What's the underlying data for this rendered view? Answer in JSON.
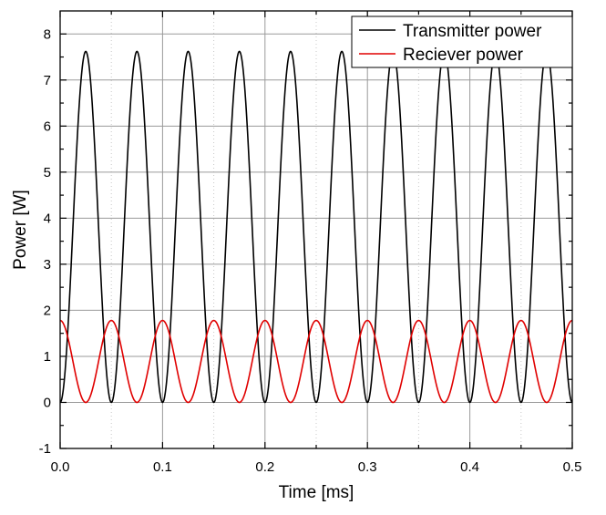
{
  "chart_data": {
    "type": "line",
    "title": "",
    "xlabel": "Time [ms]",
    "ylabel": "Power [W]",
    "xlim": [
      0.0,
      0.5
    ],
    "ylim": [
      -1,
      8.5
    ],
    "x_ticks": [
      "0.0",
      "0.1",
      "0.2",
      "0.3",
      "0.4",
      "0.5"
    ],
    "y_ticks": [
      "-1",
      "0",
      "1",
      "2",
      "3",
      "4",
      "5",
      "6",
      "7",
      "8"
    ],
    "grid": true,
    "legend_position": "top-right",
    "series": [
      {
        "name": "Transmitter power",
        "color": "#000000",
        "function": "A*sin^2(2*pi*f*t)",
        "amplitude": 7.62,
        "frequency_per_ms": 10,
        "peak_times_ms": [
          0.025,
          0.075,
          0.125,
          0.175,
          0.225,
          0.275,
          0.325,
          0.375,
          0.425,
          0.475
        ]
      },
      {
        "name": "Reciever power",
        "color": "#e00000",
        "function": "A*cos^2(2*pi*f*t)",
        "amplitude": 1.78,
        "frequency_per_ms": 10,
        "peak_times_ms": [
          0.0,
          0.05,
          0.1,
          0.15,
          0.2,
          0.25,
          0.3,
          0.35,
          0.4,
          0.45,
          0.5
        ]
      }
    ]
  }
}
